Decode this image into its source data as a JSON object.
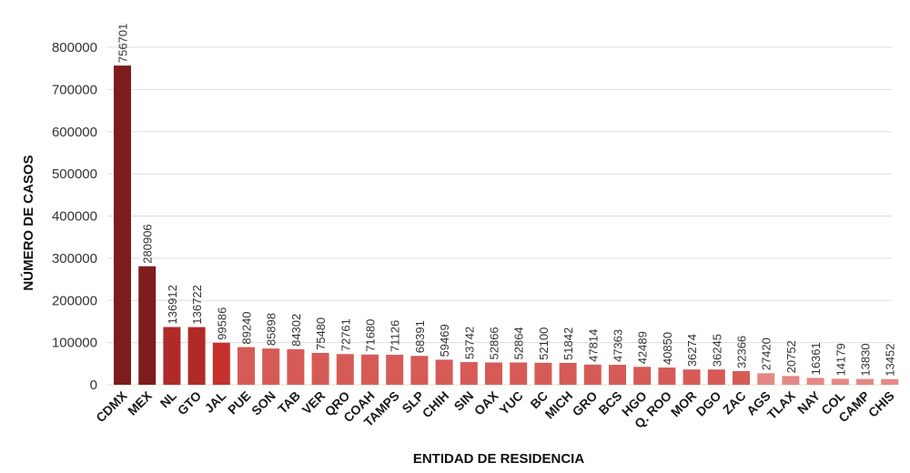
{
  "chart_data": {
    "type": "bar",
    "xlabel": "ENTIDAD DE RESIDENCIA",
    "ylabel": "NÚMERO DE CASOS",
    "ylim": [
      0,
      800000
    ],
    "yticks": [
      0,
      100000,
      200000,
      300000,
      400000,
      500000,
      600000,
      700000,
      800000
    ],
    "grid": true,
    "categories": [
      "CDMX",
      "MEX",
      "NL",
      "GTO",
      "JAL",
      "PUE",
      "SON",
      "TAB",
      "VER",
      "QRO",
      "COAH",
      "TAMPS",
      "SLP",
      "CHIH",
      "SIN",
      "OAX",
      "YUC",
      "BC",
      "MICH",
      "GRO",
      "BCS",
      "HGO",
      "Q. ROO",
      "MOR",
      "DGO",
      "ZAC",
      "AGS",
      "TLAX",
      "NAY",
      "COL",
      "CAMP",
      "CHIS"
    ],
    "values": [
      756701,
      280906,
      136912,
      136722,
      99586,
      89240,
      85898,
      84302,
      75480,
      72761,
      71680,
      71126,
      68391,
      59469,
      53742,
      52866,
      52864,
      52100,
      51842,
      47814,
      47363,
      42489,
      40850,
      36274,
      36245,
      32366,
      27420,
      20752,
      16361,
      14179,
      13830,
      13452
    ],
    "colors": [
      "#7d1d1e",
      "#7d1d1e",
      "#b02a27",
      "#b02a27",
      "#c5302c",
      "#d65b57",
      "#d65b57",
      "#d65b57",
      "#d65b57",
      "#d65b57",
      "#d65b57",
      "#d65b57",
      "#d65b57",
      "#d65b57",
      "#d65b57",
      "#d65b57",
      "#d65b57",
      "#d65b57",
      "#d65b57",
      "#d65b57",
      "#d65b57",
      "#d65b57",
      "#d65b57",
      "#d65b57",
      "#d65b57",
      "#d65b57",
      "#e48885",
      "#e48885",
      "#e48885",
      "#e48885",
      "#e48885",
      "#e48885"
    ]
  }
}
